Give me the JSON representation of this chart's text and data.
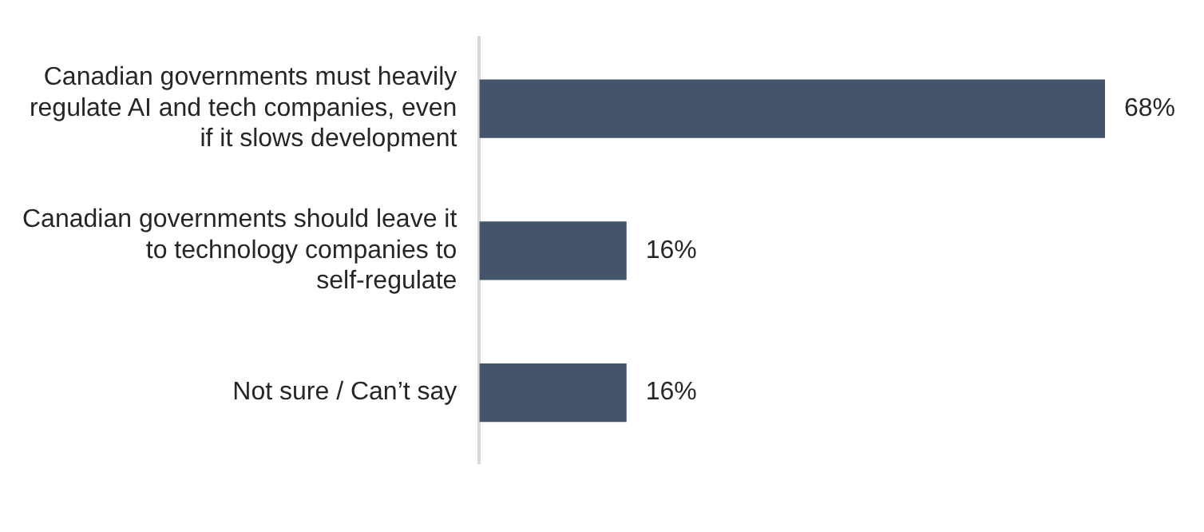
{
  "chart_data": {
    "type": "bar",
    "orientation": "horizontal",
    "categories": [
      "Canadian governments must heavily regulate AI and tech companies, even if it slows development",
      "Canadian governments should leave it to technology companies to self-regulate",
      "Not sure / Can’t say"
    ],
    "values": [
      68,
      16,
      16
    ],
    "color": "#44546a",
    "value_labels": [
      "68%",
      "16%",
      "16%"
    ],
    "legend": false,
    "tick_labels": "y"
  }
}
